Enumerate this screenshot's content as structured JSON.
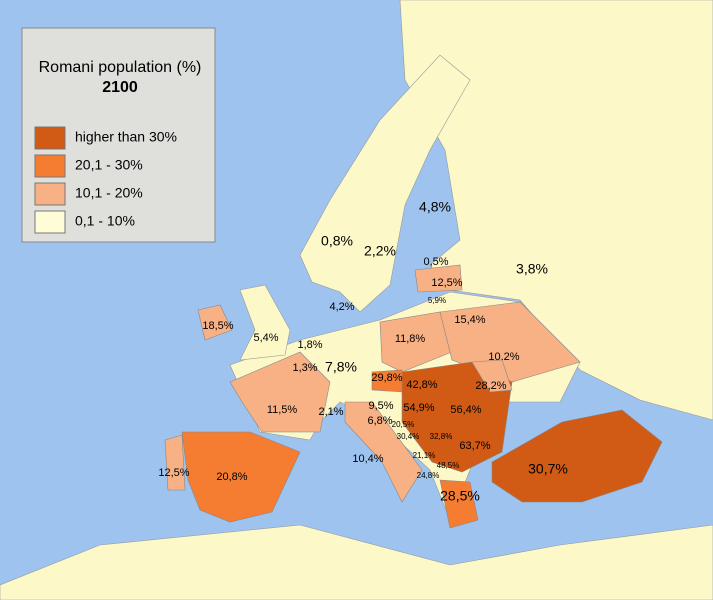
{
  "legend": {
    "title": "Romani population (%)",
    "year": "2100",
    "items": [
      {
        "label": "higher than 30%",
        "color": "#d15a14"
      },
      {
        "label": "20,1 - 30%",
        "color": "#f47d32"
      },
      {
        "label": "10,1 - 20%",
        "color": "#f8b085"
      },
      {
        "label": "0,1 - 10%",
        "color": "#fffcd8"
      }
    ]
  },
  "labels": [
    "4,8%",
    "0,8%",
    "2,2%",
    "0,5%",
    "3,8%",
    "12,5%",
    "5,9%",
    "4,2%",
    "15,4%",
    "18,5%",
    "5,4%",
    "1,8%",
    "11,8%",
    "10.2%",
    "1,3%",
    "7,8%",
    "29,8%",
    "42,8%",
    "28,2%",
    "11,5%",
    "2,1%",
    "9,5%",
    "54,9%",
    "56,4%",
    "6,8%",
    "20,5%",
    "30,4%",
    "32,8%",
    "21,1%",
    "63,7%",
    "10,4%",
    "48,5%",
    "24,8%",
    "30,7%",
    "12,5%",
    "20,8%",
    "28,5%"
  ]
}
